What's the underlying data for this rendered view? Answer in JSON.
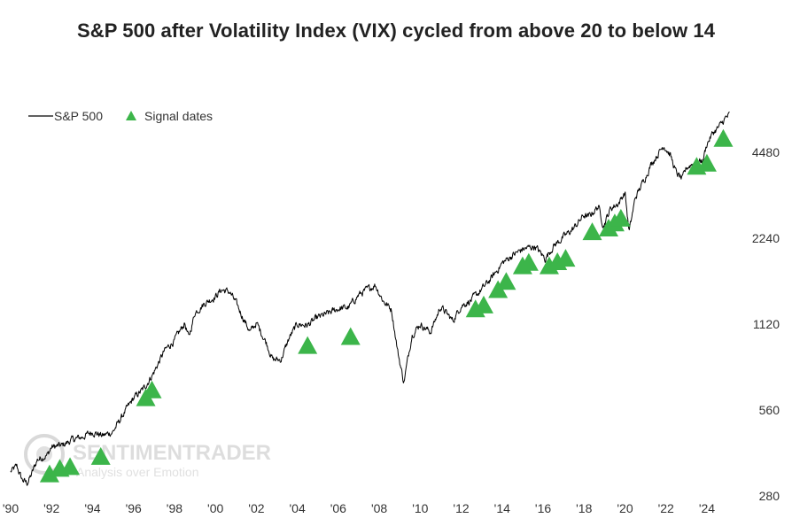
{
  "chart_data": {
    "type": "line",
    "title": "S&P 500 after Volatility Index (VIX) cycled from above 20 to below 14",
    "xlabel": "",
    "ylabel": "",
    "y_scale": "log",
    "xlim": [
      1990,
      2025.3
    ],
    "ylim": [
      280,
      7500
    ],
    "grid": false,
    "legend": {
      "placement": "top-left",
      "entries": [
        {
          "label": "S&P 500",
          "symbol": "line",
          "color": "#000000"
        },
        {
          "label": "Signal dates",
          "symbol": "triangle",
          "color": "#3cb54a"
        }
      ]
    },
    "x_ticks": [
      {
        "value": 1990,
        "label": "'90"
      },
      {
        "value": 1992,
        "label": "'92"
      },
      {
        "value": 1994,
        "label": "'94"
      },
      {
        "value": 1996,
        "label": "'96"
      },
      {
        "value": 1998,
        "label": "'98"
      },
      {
        "value": 2000,
        "label": "'00"
      },
      {
        "value": 2002,
        "label": "'02"
      },
      {
        "value": 2004,
        "label": "'04"
      },
      {
        "value": 2006,
        "label": "'06"
      },
      {
        "value": 2008,
        "label": "'08"
      },
      {
        "value": 2010,
        "label": "'10"
      },
      {
        "value": 2012,
        "label": "'12"
      },
      {
        "value": 2014,
        "label": "'14"
      },
      {
        "value": 2016,
        "label": "'16"
      },
      {
        "value": 2018,
        "label": "'18"
      },
      {
        "value": 2020,
        "label": "'20"
      },
      {
        "value": 2022,
        "label": "'22"
      },
      {
        "value": 2024,
        "label": "'24"
      }
    ],
    "y_ticks": [
      {
        "value": 280,
        "label": "280"
      },
      {
        "value": 560,
        "label": "560"
      },
      {
        "value": 1120,
        "label": "1120"
      },
      {
        "value": 2240,
        "label": "2240"
      },
      {
        "value": 4480,
        "label": "4480"
      }
    ],
    "series": [
      {
        "name": "S&P 500",
        "kind": "line",
        "color": "#000000",
        "x": [
          1990.0,
          1990.3,
          1990.55,
          1990.8,
          1991.0,
          1991.3,
          1991.8,
          1992.0,
          1992.5,
          1993.0,
          1993.5,
          1994.0,
          1994.5,
          1995.0,
          1995.5,
          1996.0,
          1996.5,
          1997.0,
          1997.5,
          1997.8,
          1998.0,
          1998.5,
          1998.7,
          1999.0,
          1999.5,
          2000.0,
          2000.3,
          2000.7,
          2001.0,
          2001.3,
          2001.7,
          2002.0,
          2002.5,
          2002.8,
          2003.2,
          2003.6,
          2004.0,
          2004.5,
          2005.0,
          2005.5,
          2006.0,
          2006.5,
          2007.0,
          2007.5,
          2007.8,
          2008.2,
          2008.6,
          2008.9,
          2009.2,
          2009.6,
          2010.0,
          2010.5,
          2011.0,
          2011.6,
          2012.0,
          2012.5,
          2013.0,
          2013.5,
          2014.0,
          2014.5,
          2015.0,
          2015.6,
          2016.1,
          2016.5,
          2017.0,
          2017.5,
          2018.0,
          2018.2,
          2018.7,
          2018.95,
          2019.3,
          2019.7,
          2020.0,
          2020.2,
          2020.5,
          2020.9,
          2021.3,
          2021.9,
          2022.2,
          2022.5,
          2022.8,
          2023.0,
          2023.3,
          2023.8,
          2024.0,
          2024.3,
          2024.6,
          2024.9,
          2025.1
        ],
        "values": [
          340,
          355,
          320,
          310,
          330,
          375,
          390,
          415,
          420,
          440,
          450,
          470,
          455,
          470,
          540,
          615,
          665,
          760,
          900,
          950,
          980,
          1130,
          1000,
          1230,
          1330,
          1400,
          1480,
          1450,
          1330,
          1200,
          1050,
          1130,
          960,
          840,
          840,
          1000,
          1120,
          1110,
          1180,
          1220,
          1270,
          1280,
          1420,
          1490,
          1540,
          1350,
          1260,
          900,
          700,
          1030,
          1120,
          1050,
          1290,
          1150,
          1300,
          1360,
          1480,
          1630,
          1830,
          1950,
          2050,
          2100,
          1900,
          2100,
          2260,
          2430,
          2700,
          2650,
          2900,
          2480,
          2850,
          2980,
          3250,
          2350,
          3100,
          3550,
          4100,
          4750,
          4400,
          3800,
          3600,
          3950,
          4100,
          4200,
          4800,
          5250,
          5500,
          5900,
          6050
        ]
      },
      {
        "name": "Signal dates",
        "kind": "marker",
        "color": "#3cb54a",
        "x": [
          1991.9,
          1992.4,
          1992.9,
          1994.4,
          1996.6,
          1996.9,
          2004.5,
          2006.6,
          2012.7,
          2013.1,
          2013.8,
          2014.2,
          2015.0,
          2015.3,
          2016.3,
          2016.7,
          2017.1,
          2018.4,
          2019.2,
          2019.5,
          2019.8,
          2023.5,
          2024.0,
          2024.8
        ],
        "values": [
          330,
          345,
          350,
          380,
          610,
          650,
          930,
          1000,
          1250,
          1290,
          1460,
          1560,
          1770,
          1820,
          1770,
          1830,
          1880,
          2330,
          2400,
          2500,
          2600,
          3950,
          4050,
          4950
        ]
      }
    ]
  },
  "watermark": {
    "brand": "SENTIMENTRADER",
    "tagline": "Analysis over Emotion"
  }
}
